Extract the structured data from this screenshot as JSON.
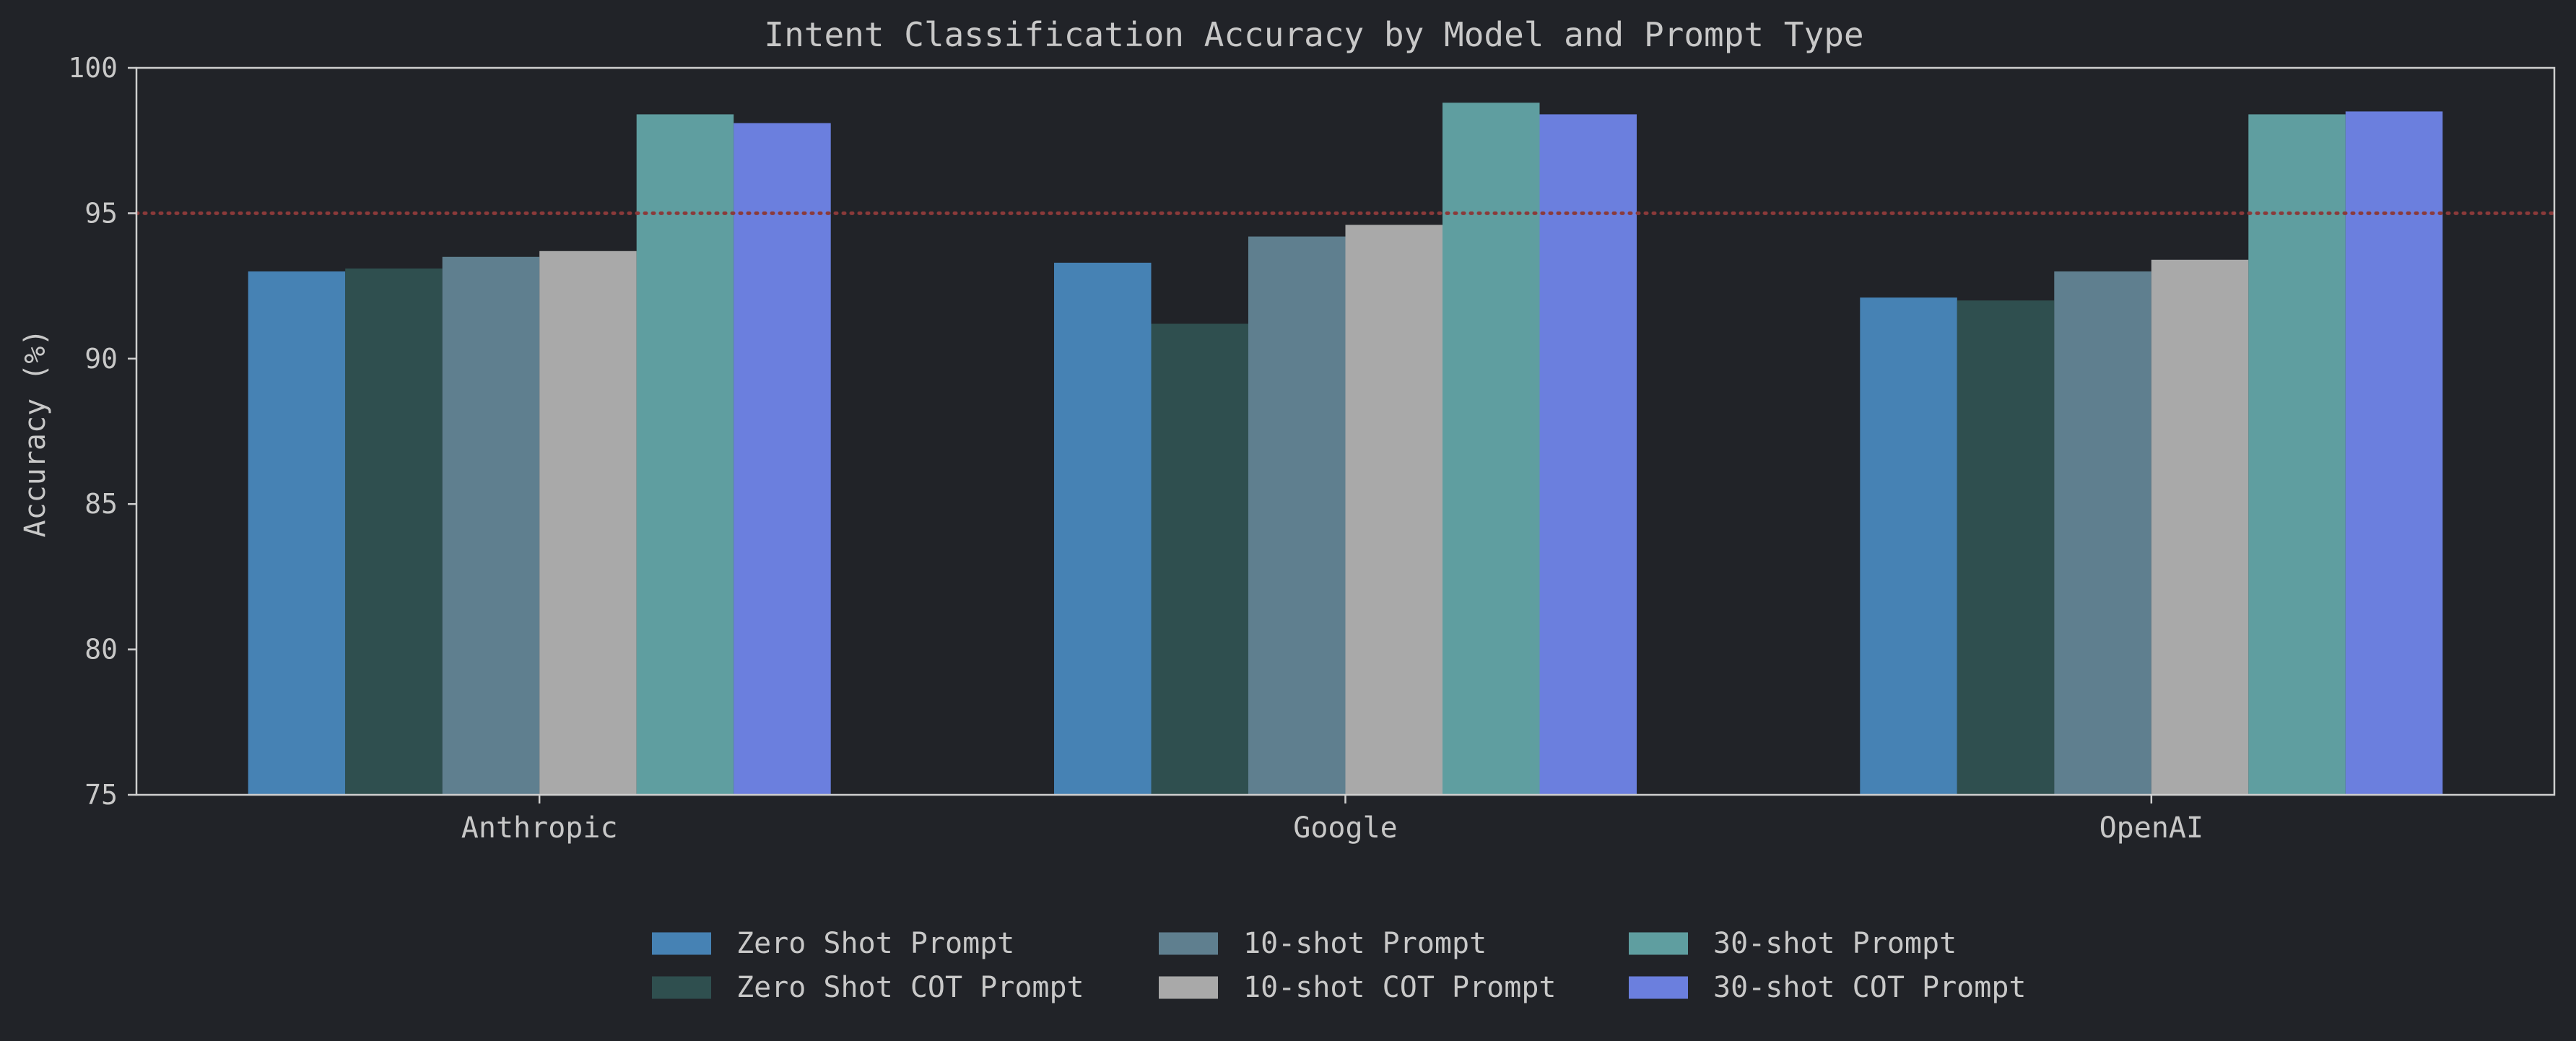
{
  "chart_data": {
    "type": "bar",
    "title": "Intent Classification Accuracy by Model and Prompt Type",
    "xlabel": "",
    "ylabel": "Accuracy (%)",
    "ylim": [
      75,
      100
    ],
    "yticks": [
      "75",
      "80",
      "85",
      "90",
      "95",
      "100"
    ],
    "categories": [
      "Anthropic",
      "Google",
      "OpenAI"
    ],
    "reference_line": {
      "value": 95,
      "style": "dotted",
      "color": "#8b3a3a"
    },
    "legend_position": "bottom-center",
    "grid": false,
    "series": [
      {
        "name": "Zero Shot Prompt",
        "color": "#4682b4",
        "values": [
          93.0,
          93.3,
          92.1
        ]
      },
      {
        "name": "Zero Shot COT Prompt",
        "color": "#2f4f4f",
        "values": [
          93.1,
          91.2,
          92.0
        ]
      },
      {
        "name": "10-shot Prompt",
        "color": "#5f7f8f",
        "values": [
          93.5,
          94.2,
          93.0
        ]
      },
      {
        "name": "10-shot COT Prompt",
        "color": "#a9a9a9",
        "values": [
          93.7,
          94.6,
          93.4
        ]
      },
      {
        "name": "30-shot Prompt",
        "color": "#5f9ea0",
        "values": [
          98.4,
          98.8,
          98.4
        ]
      },
      {
        "name": "30-shot COT Prompt",
        "color": "#6b7fde",
        "values": [
          98.1,
          98.4,
          98.5
        ]
      }
    ]
  }
}
